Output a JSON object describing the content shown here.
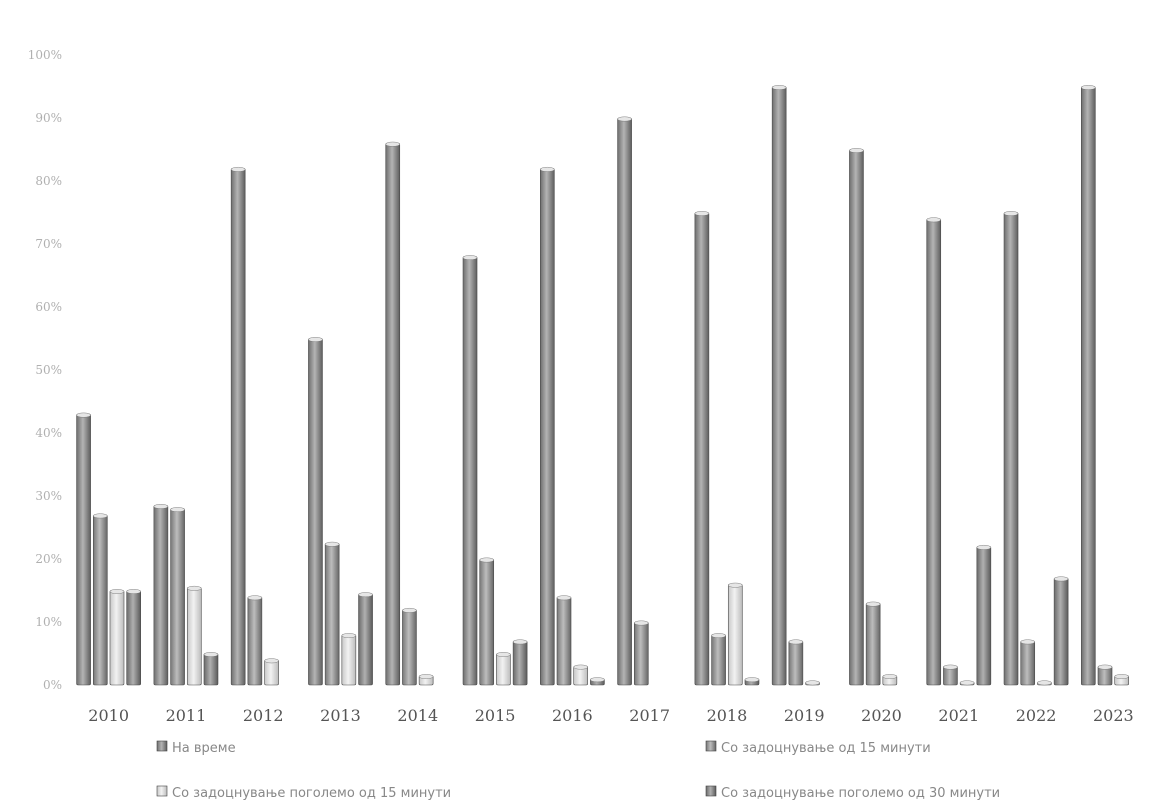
{
  "chart_data": {
    "type": "bar",
    "title": "",
    "xlabel": "",
    "ylabel": "",
    "ylim": [
      0,
      100
    ],
    "y_ticks": [
      "0%",
      "10%",
      "20%",
      "30%",
      "40%",
      "50%",
      "60%",
      "70%",
      "80%",
      "90%",
      "100%"
    ],
    "grid": false,
    "legend_position": "bottom",
    "categories": [
      "2010",
      "2011",
      "2012",
      "2013",
      "2014",
      "2015",
      "2016",
      "2017",
      "2018",
      "2019",
      "2020",
      "2021",
      "2022",
      "2023"
    ],
    "series": [
      {
        "name": "На време",
        "color": "#8c8c8c",
        "values": [
          43,
          28.5,
          82,
          55,
          86,
          68,
          82,
          90,
          75,
          95,
          85,
          74,
          75,
          95
        ]
      },
      {
        "name": "Со задоцнување од 15 минути",
        "color": "#9a9a9a",
        "values": [
          27,
          28,
          14,
          22.5,
          12,
          20,
          14,
          10,
          8,
          7,
          13,
          3,
          7,
          3
        ]
      },
      {
        "name": "Со задоцнување поголемо од 15 минути",
        "color": "#dcdcdc",
        "values": [
          15,
          15.5,
          4,
          8,
          1.5,
          5,
          3,
          0,
          16,
          0.5,
          1.5,
          0.5,
          0.5,
          1.5
        ]
      },
      {
        "name": "Со задоцнување поголемо од 30 минути",
        "color": "#8a8a8a",
        "values": [
          15,
          5,
          0,
          14.5,
          0,
          7,
          1,
          0,
          1,
          0,
          0,
          22,
          17,
          0
        ]
      }
    ]
  }
}
